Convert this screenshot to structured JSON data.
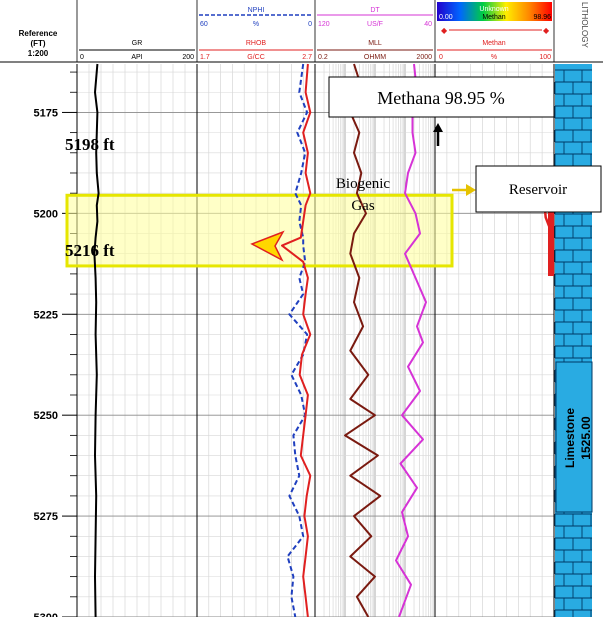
{
  "header": {
    "reference_label": "Reference",
    "unit_label": "(FT)",
    "scale_label": "1:200",
    "lithology_label": "LITHOLOGY",
    "curves": {
      "gr": {
        "name": "GR",
        "unit": "API",
        "min": "0",
        "max": "200"
      },
      "nphi": {
        "name": "NPHI",
        "unit": "%",
        "min": "60",
        "max": "0"
      },
      "rhob": {
        "name": "RHOB",
        "unit": "G/CC",
        "min": "1.7",
        "max": "2.7"
      },
      "dt": {
        "name": "DT",
        "unit": "US/F",
        "min": "120",
        "max": "40"
      },
      "mll": {
        "name": "MLL",
        "unit": "OHMM",
        "min": "0.2",
        "max": "2000"
      },
      "unknown": {
        "name": "Unknown",
        "min": "0.00",
        "max": "98.96"
      },
      "methan": {
        "name": "Methan",
        "unit": "%",
        "min": "0",
        "max": "100"
      },
      "methan_band": {
        "name": "Methan"
      }
    }
  },
  "annotations": {
    "top_depth": "5198 ft",
    "bottom_depth": "5216 ft",
    "zone_label_line1": "Biogenic",
    "zone_label_line2": "Gas",
    "methane_callout": "Methana 98.95 %",
    "reservoir_callout": "Reservoir",
    "lithology_text": "Limestone",
    "lithology_value": "1525.00"
  },
  "colors": {
    "gr": "#000000",
    "nphi": "#1f3fbf",
    "rhob": "#e02020",
    "dt": "#d633d6",
    "mll": "#7a1a10",
    "methan": "#e02020",
    "zone_fill": "#ffff99",
    "zone_border": "#e6e600",
    "lithology_fill": "#29abe2",
    "lithology_line": "#003a66"
  },
  "chart_data": {
    "type": "well-log",
    "depth_ticks": [
      5175,
      5200,
      5225,
      5250,
      5275,
      5300
    ],
    "depth_range": [
      5163,
      5300
    ],
    "zone": {
      "top": 5198,
      "bottom": 5216,
      "label": "Biogenic Gas"
    },
    "tracks": [
      {
        "name": "GR",
        "unit": "API",
        "scale": [
          0,
          200
        ],
        "scale_type": "linear",
        "depth": [
          5163,
          5170,
          5175,
          5180,
          5185,
          5190,
          5195,
          5198,
          5202,
          5206,
          5210,
          5216,
          5222,
          5230,
          5240,
          5250,
          5260,
          5270,
          5280,
          5290,
          5300
        ],
        "values": [
          34,
          30,
          34,
          33,
          32,
          33,
          36,
          33,
          34,
          31,
          29,
          31,
          32,
          31,
          33,
          31,
          30,
          32,
          31,
          30,
          31
        ]
      },
      {
        "name": "NPHI",
        "unit": "%",
        "scale": [
          60,
          0
        ],
        "scale_type": "linear",
        "depth": [
          5163,
          5170,
          5175,
          5180,
          5185,
          5190,
          5195,
          5198,
          5202,
          5206,
          5208,
          5212,
          5216,
          5220,
          5225,
          5230,
          5235,
          5240,
          5245,
          5250,
          5255,
          5260,
          5265,
          5270,
          5275,
          5280,
          5285,
          5290,
          5295,
          5300
        ],
        "values": [
          6,
          8,
          4,
          9,
          5,
          7,
          10,
          7,
          8,
          6,
          6,
          5,
          8,
          6,
          13,
          4,
          6,
          12,
          7,
          5,
          11,
          10,
          8,
          13,
          8,
          6,
          14,
          11,
          12,
          10
        ]
      },
      {
        "name": "RHOB",
        "unit": "G/CC",
        "scale": [
          1.7,
          2.7
        ],
        "scale_type": "linear",
        "depth": [
          5163,
          5170,
          5175,
          5180,
          5185,
          5190,
          5195,
          5198,
          5202,
          5206,
          5208,
          5212,
          5216,
          5220,
          5225,
          5230,
          5235,
          5240,
          5245,
          5250,
          5255,
          5260,
          5265,
          5270,
          5275,
          5280,
          5285,
          5290,
          5295,
          5300
        ],
        "values": [
          2.64,
          2.62,
          2.66,
          2.6,
          2.64,
          2.62,
          2.66,
          2.62,
          2.6,
          2.58,
          2.42,
          2.6,
          2.64,
          2.62,
          2.6,
          2.66,
          2.59,
          2.57,
          2.64,
          2.62,
          2.6,
          2.58,
          2.66,
          2.63,
          2.61,
          2.64,
          2.62,
          2.6,
          2.62,
          2.64
        ]
      },
      {
        "name": "DT",
        "unit": "US/F",
        "scale": [
          120,
          40
        ],
        "scale_type": "linear",
        "depth": [
          5163,
          5170,
          5175,
          5180,
          5185,
          5190,
          5195,
          5200,
          5205,
          5210,
          5216,
          5222,
          5228,
          5232,
          5238,
          5244,
          5250,
          5256,
          5262,
          5268,
          5274,
          5280,
          5286,
          5292,
          5300
        ],
        "values": [
          54,
          52,
          55,
          55,
          53,
          58,
          60,
          53,
          50,
          60,
          53,
          46,
          52,
          48,
          58,
          50,
          62,
          48,
          63,
          52,
          62,
          58,
          66,
          56,
          64
        ]
      },
      {
        "name": "MLL",
        "unit": "OHMM",
        "scale": [
          0.2,
          2000
        ],
        "scale_type": "log",
        "depth": [
          5163,
          5170,
          5175,
          5180,
          5185,
          5190,
          5195,
          5200,
          5205,
          5210,
          5216,
          5222,
          5228,
          5234,
          5240,
          5246,
          5250,
          5255,
          5260,
          5265,
          5270,
          5275,
          5280,
          5285,
          5290,
          5295,
          5300
        ],
        "values": [
          4,
          8,
          3,
          6,
          4,
          7,
          5,
          10,
          4,
          3,
          6,
          4,
          8,
          3,
          12,
          3,
          20,
          2,
          25,
          3,
          30,
          4,
          15,
          3,
          20,
          5,
          12
        ]
      },
      {
        "name": "Methan",
        "unit": "%",
        "scale": [
          0,
          100
        ],
        "scale_type": "linear",
        "depth": [
          5192,
          5195,
          5198,
          5201,
          5204
        ],
        "values": [
          96,
          93,
          92,
          93,
          97
        ]
      }
    ]
  }
}
